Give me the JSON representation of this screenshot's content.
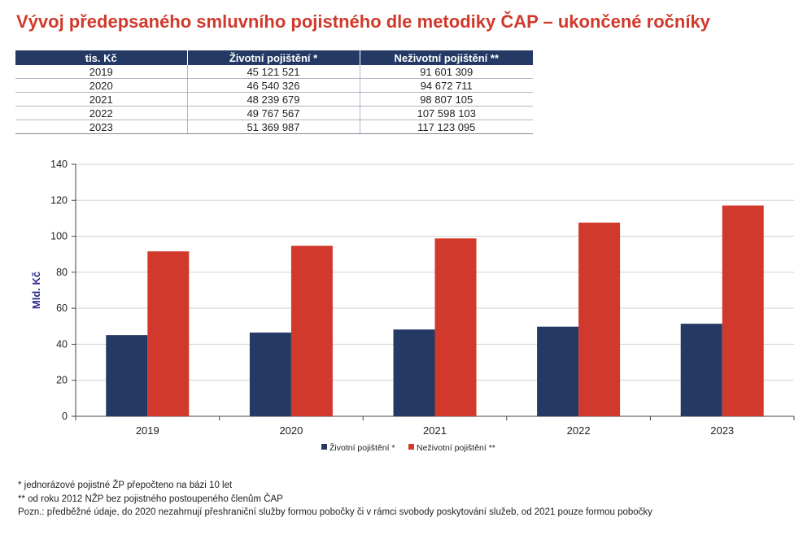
{
  "title": "Vývoj předepsaného smluvního pojistného dle metodiky ČAP – ukončené ročníky",
  "table": {
    "headers": [
      "tis. Kč",
      "Životní pojištění *",
      "Neživotní pojištění **"
    ],
    "rows": [
      [
        "2019",
        "45 121 521",
        "91 601 309"
      ],
      [
        "2020",
        "46 540 326",
        "94 672 711"
      ],
      [
        "2021",
        "48 239 679",
        "98 807 105"
      ],
      [
        "2022",
        "49 767 567",
        "107 598 103"
      ],
      [
        "2023",
        "51 369 987",
        "117 123 095"
      ]
    ]
  },
  "chart_data": {
    "type": "bar",
    "categories": [
      "2019",
      "2020",
      "2021",
      "2022",
      "2023"
    ],
    "series": [
      {
        "name": "Životní pojištění *",
        "color": "#243a64",
        "values": [
          45.1,
          46.5,
          48.2,
          49.8,
          51.4
        ]
      },
      {
        "name": "Neživotní pojištění **",
        "color": "#d0392b",
        "values": [
          91.6,
          94.7,
          98.8,
          107.6,
          117.1
        ]
      }
    ],
    "ylabel": "Mld. Kč",
    "xlabel": "",
    "ylim": [
      0,
      140
    ],
    "yticks": [
      "0",
      "20",
      "40",
      "60",
      "80",
      "100",
      "120",
      "140"
    ],
    "grid": true,
    "legend": "bottom-center"
  },
  "notes": [
    "* jednorázové pojistné ŽP přepočteno na bázi 10 let",
    "** od roku 2012 NŽP bez pojistného postoupeného členům ČAP",
    "Pozn.: předběžné údaje, do 2020 nezahrnují přeshraniční služby formou pobočky či v rámci svobody poskytování služeb, od 2021 pouze formou pobočky"
  ],
  "colors": {
    "title": "#d0392b",
    "header_bg": "#243a64",
    "axis_label": "#2e2a8c"
  }
}
